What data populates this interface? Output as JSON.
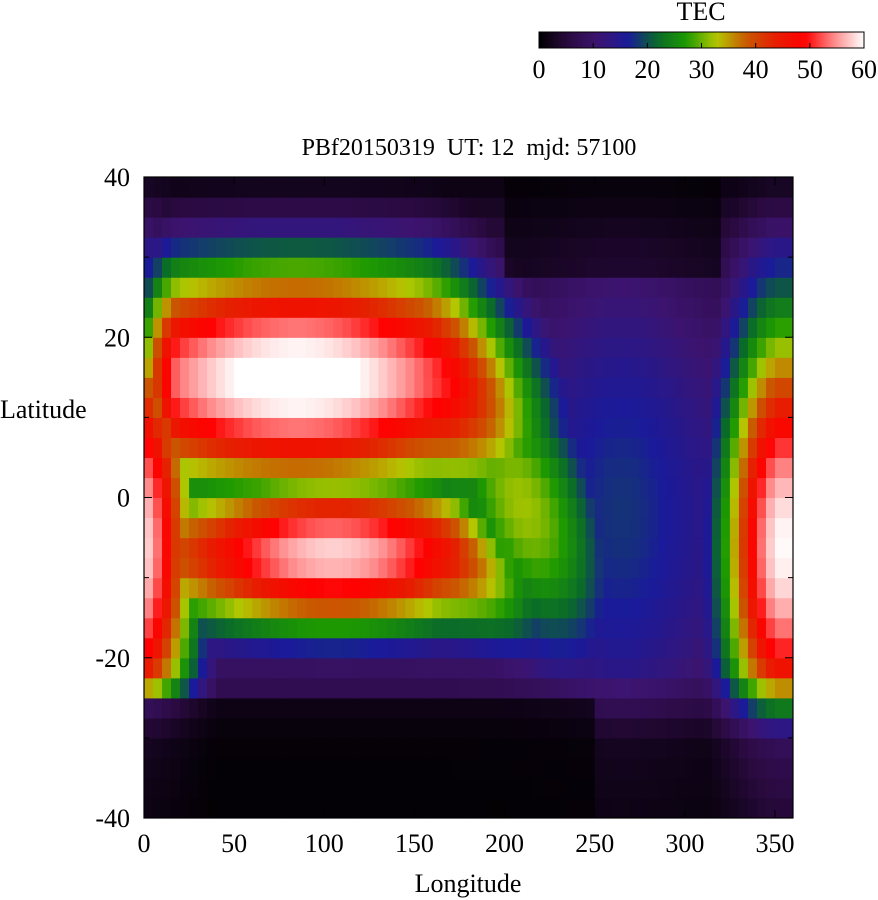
{
  "chart_data": {
    "type": "heatmap",
    "title": "PBf20150319  UT: 12  mjd: 57100",
    "xlabel": "Longitude",
    "ylabel": "Latitude",
    "xlim": [
      0,
      360
    ],
    "ylim": [
      -40,
      40
    ],
    "x_ticks": [
      "0",
      "50",
      "100",
      "150",
      "200",
      "250",
      "300",
      "350"
    ],
    "y_ticks": [
      "-40",
      "-20",
      "0",
      "20",
      "40"
    ],
    "x_tick_values": [
      0,
      50,
      100,
      150,
      200,
      250,
      300,
      350
    ],
    "y_tick_values": [
      -40,
      -20,
      0,
      20,
      40
    ],
    "colorbar": {
      "label": "TEC",
      "range": [
        0,
        60
      ],
      "ticks": [
        "0",
        "10",
        "20",
        "30",
        "40",
        "50",
        "60"
      ],
      "tick_values": [
        0,
        10,
        20,
        30,
        40,
        50,
        60
      ],
      "palette": [
        "#000000",
        "#2a0a40",
        "#3c1470",
        "#1a1a9a",
        "#0a6a2a",
        "#1e9a00",
        "#b4c800",
        "#c85a00",
        "#e61e00",
        "#ff0000",
        "#ff8c8c",
        "#ffffff"
      ]
    },
    "grid_resolution": {
      "lon_step": 5,
      "lat_step": 2.5
    },
    "features": {
      "north_crest": {
        "lat": 15,
        "lon_min": 20,
        "lon_max": 140,
        "lon_peak": 85,
        "peak_tec": 63
      },
      "south_crest": {
        "lat": -7,
        "lon_min": 20,
        "lon_max": 170,
        "lon_peak": 105,
        "peak_tec": 58
      },
      "evening_ridge": {
        "lon_at_equator": 355,
        "peak_tec": 60
      },
      "night_trough_lon": 265
    }
  }
}
